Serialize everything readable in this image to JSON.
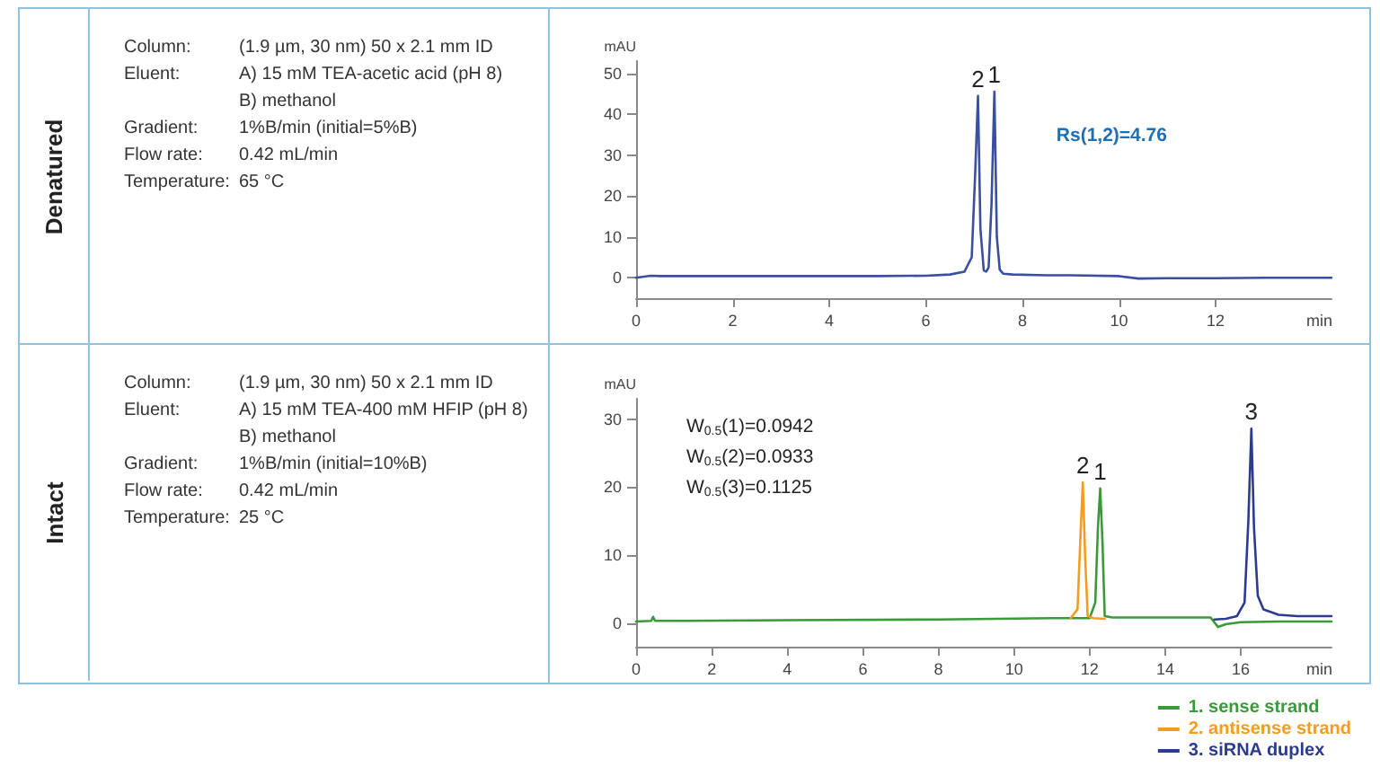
{
  "chart_data": [
    {
      "type": "other",
      "title": "Denatured",
      "annotations": [
        "Column:\t(1.9 µm, 30 nm) 50 x 2.1 mm ID",
        "Eluent:\tA) 15 mM TEA-acetic acid (pH 8)",
        "\tB) methanol",
        "Gradient:\t1%B/min (initial=5%B)",
        "Flow rate:\t0.42 mL/min",
        "Temperature:\t65 °C"
      ]
    },
    {
      "type": "line",
      "xlabel": "min",
      "ylabel": "mAU",
      "xlim": [
        0,
        14.4
      ],
      "xticks": [
        0,
        2,
        4,
        6,
        8,
        10,
        12
      ],
      "ylim": [
        -5,
        53
      ],
      "yticks": [
        0,
        10,
        20,
        30,
        40,
        50
      ],
      "grid": false,
      "legend": false,
      "marker": "none",
      "line_style": "solid",
      "series": [
        {
          "color": "#3a4fa0",
          "x": [
            0,
            0.3,
            0.5,
            1,
            3,
            5,
            6,
            6.5,
            6.8,
            6.95,
            7.02,
            7.08,
            7.13,
            7.2,
            7.25,
            7.3,
            7.36,
            7.42,
            7.47,
            7.53,
            7.6,
            7.8,
            8.5,
            9,
            10,
            10.4,
            11,
            12,
            13,
            14.4
          ],
          "values": [
            0,
            0.5,
            0.4,
            0.4,
            0.4,
            0.4,
            0.5,
            0.8,
            1.5,
            5,
            25,
            44.5,
            12,
            1.8,
            1.5,
            2.5,
            18,
            45.5,
            10,
            2,
            1,
            0.8,
            0.6,
            0.6,
            0.4,
            -0.2,
            -0.1,
            -0.1,
            0,
            0
          ]
        }
      ],
      "annotations": [
        "Rs(1,2)=4.76",
        {
          "text": "2",
          "x": 7.08,
          "y": 44.5
        },
        {
          "text": "1",
          "x": 7.42,
          "y": 45.5
        }
      ]
    },
    {
      "type": "other",
      "title": "Intact",
      "annotations": [
        "Column:\t(1.9 µm, 30 nm) 50 x 2.1 mm ID",
        "Eluent:\tA) 15 mM TEA-400 mM HFIP (pH 8)",
        "\tB) methanol",
        "Gradient:\t1%B/min (initial=10%B)",
        "Flow rate:\t0.42 mL/min",
        "Temperature:\t25 °C"
      ]
    },
    {
      "type": "line",
      "xlabel": "min",
      "ylabel": "mAU",
      "xlim": [
        0,
        18.4
      ],
      "xticks": [
        0,
        2,
        4,
        6,
        8,
        10,
        12,
        14,
        16
      ],
      "ylim": [
        -3.5,
        33
      ],
      "yticks": [
        0,
        10,
        20,
        30
      ],
      "grid": false,
      "legend": "bottom right",
      "marker": "none",
      "line_style": "solid",
      "series": [
        {
          "name": "1. sense strand",
          "color": "#3a9a3a",
          "x": [
            0,
            0.4,
            0.45,
            0.5,
            1,
            4,
            8,
            11,
            12,
            12.15,
            12.22,
            12.28,
            12.34,
            12.4,
            12.6,
            14,
            15.2,
            15.4,
            15.6,
            16,
            17,
            18.4
          ],
          "values": [
            0.2,
            0.3,
            0.9,
            0.3,
            0.3,
            0.4,
            0.5,
            0.7,
            0.7,
            3,
            14,
            19.8,
            12,
            1,
            0.8,
            0.8,
            0.8,
            -0.6,
            -0.2,
            0.1,
            0.2,
            0.2
          ]
        },
        {
          "name": "2. antisense strand",
          "color": "#f39c1f",
          "x": [
            11.5,
            11.68,
            11.76,
            11.82,
            11.88,
            11.95,
            12.1,
            12.4
          ],
          "values": [
            0.7,
            2,
            13,
            20.7,
            10,
            1,
            0.7,
            0.6
          ]
        },
        {
          "name": "3. siRNA duplex",
          "color": "#2c3a90",
          "x": [
            15.3,
            15.6,
            15.9,
            16.1,
            16.2,
            16.28,
            16.35,
            16.45,
            16.6,
            17,
            17.5,
            18.4
          ],
          "values": [
            0.5,
            0.6,
            1,
            3,
            15,
            28.6,
            14,
            4,
            2,
            1.2,
            1,
            1
          ]
        }
      ],
      "annotations": [
        "W$_{0.5}$(1)=0.0942",
        "W$_{0.5}$(2)=0.0933",
        "W$_{0.5}$(3)=0.1125",
        {
          "text": "2",
          "x": 11.82,
          "y": 20.7
        },
        {
          "text": "1",
          "x": 12.28,
          "y": 19.8
        },
        {
          "text": "3",
          "x": 16.28,
          "y": 28.6
        }
      ]
    }
  ]
}
